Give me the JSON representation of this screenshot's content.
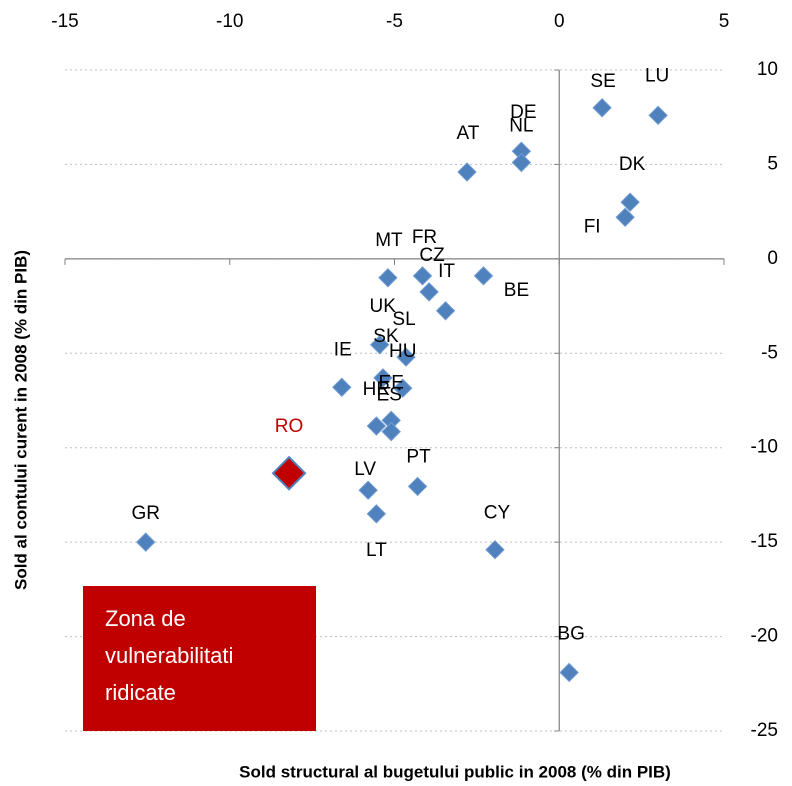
{
  "chart_data": {
    "type": "scatter",
    "x_label": "Sold structural al bugetului public in 2008 (% din PIB)",
    "y_label": "Sold al contului curent in 2008 (% din PIB)",
    "labels": [
      "SE",
      "LU",
      "DE",
      "NL",
      "AT",
      "DK",
      "FI",
      "MT",
      "FR",
      "CZ",
      "IT",
      "BE",
      "UK",
      "SL",
      "SK",
      "HU",
      "IE",
      "HR",
      "EE",
      "ES",
      "RO",
      "LV",
      "PT",
      "LT",
      "GR",
      "CY",
      "BG"
    ],
    "x": [
      1.3,
      3.0,
      -1.15,
      -1.15,
      -2.8,
      2.15,
      2.0,
      -5.2,
      -4.15,
      -3.95,
      -3.45,
      -2.3,
      -5.45,
      -4.65,
      -5.35,
      -4.75,
      -6.6,
      -5.55,
      -5.1,
      -5.1,
      -8.2,
      -5.8,
      -4.3,
      -5.55,
      -12.55,
      -1.95,
      0.3
    ],
    "y": [
      8.0,
      7.6,
      5.7,
      5.1,
      4.6,
      3.0,
      2.2,
      -1.0,
      -0.9,
      -1.75,
      -2.75,
      -0.9,
      -4.55,
      -5.2,
      -6.3,
      -6.85,
      -6.8,
      -8.85,
      -8.55,
      -9.15,
      -11.35,
      -12.25,
      -12.05,
      -13.5,
      -15.0,
      -15.4,
      -21.9
    ],
    "color": "#4f81bd",
    "highlight": "RO",
    "highlight_color": "#c00000",
    "xlim": [
      -15,
      5
    ],
    "xticks": [
      -15,
      -10,
      -5,
      0,
      5
    ],
    "ylim": [
      -25,
      10
    ],
    "yticks": [
      -25,
      -20,
      -15,
      -10,
      -5,
      0,
      5,
      10
    ],
    "grid": true,
    "annotation": {
      "lines": [
        "Zona de",
        "vulnerabilitati",
        "ridicate"
      ],
      "color": "#c00000"
    }
  }
}
